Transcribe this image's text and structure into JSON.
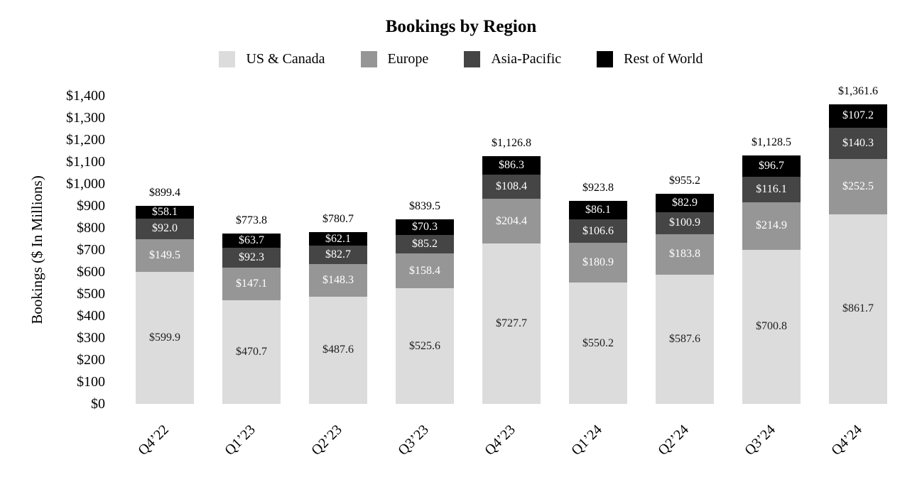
{
  "chart_data": {
    "type": "bar",
    "stacked": true,
    "title": "Bookings by Region",
    "categories": [
      "Q4’22",
      "Q1’23",
      "Q2’23",
      "Q3’23",
      "Q4’23",
      "Q1’24",
      "Q2’24",
      "Q3’24",
      "Q4’24"
    ],
    "series": [
      {
        "name": "US & Canada",
        "color": "#dcdcdc",
        "label_color": "#1f1f1f",
        "values": [
          599.9,
          470.7,
          487.6,
          525.6,
          727.7,
          550.2,
          587.6,
          700.8,
          861.7
        ],
        "labels": [
          "$599.9",
          "$470.7",
          "$487.6",
          "$525.6",
          "$727.7",
          "$550.2",
          "$587.6",
          "$700.8",
          "$861.7"
        ]
      },
      {
        "name": "Europe",
        "color": "#969696",
        "label_color": "#ffffff",
        "values": [
          149.5,
          147.1,
          148.3,
          158.4,
          204.4,
          180.9,
          183.8,
          214.9,
          252.5
        ],
        "labels": [
          "$149.5",
          "$147.1",
          "$148.3",
          "$158.4",
          "$204.4",
          "$180.9",
          "$183.8",
          "$214.9",
          "$252.5"
        ]
      },
      {
        "name": "Asia-Pacific",
        "color": "#454545",
        "label_color": "#ffffff",
        "values": [
          92.0,
          92.3,
          82.7,
          85.2,
          108.4,
          106.6,
          100.9,
          116.1,
          140.3
        ],
        "labels": [
          "$92.0",
          "$92.3",
          "$82.7",
          "$85.2",
          "$108.4",
          "$106.6",
          "$100.9",
          "$116.1",
          "$140.3"
        ]
      },
      {
        "name": "Rest of World",
        "color": "#000000",
        "label_color": "#ffffff",
        "values": [
          58.1,
          63.7,
          62.1,
          70.3,
          86.3,
          86.1,
          82.9,
          96.7,
          107.2
        ],
        "labels": [
          "$58.1",
          "$63.7",
          "$62.1",
          "$70.3",
          "$86.3",
          "$86.1",
          "$82.9",
          "$96.7",
          "$107.2"
        ]
      }
    ],
    "totals": {
      "values": [
        899.4,
        773.8,
        780.7,
        839.5,
        1126.8,
        923.8,
        955.2,
        1128.5,
        1361.6
      ],
      "labels": [
        "$899.4",
        "$773.8",
        "$780.7",
        "$839.5",
        "$1,126.8",
        "$923.8",
        "$955.2",
        "$1,128.5",
        "$1,361.6"
      ]
    },
    "y_axis": {
      "title": "Bookings ($ In Millions)",
      "min": 0,
      "max": 1400,
      "ticks": [
        {
          "value": 0,
          "label": "$0"
        },
        {
          "value": 100,
          "label": "$100"
        },
        {
          "value": 200,
          "label": "$200"
        },
        {
          "value": 300,
          "label": "$300"
        },
        {
          "value": 400,
          "label": "$400"
        },
        {
          "value": 500,
          "label": "$500"
        },
        {
          "value": 600,
          "label": "$600"
        },
        {
          "value": 700,
          "label": "$700"
        },
        {
          "value": 800,
          "label": "$800"
        },
        {
          "value": 900,
          "label": "$900"
        },
        {
          "value": 1000,
          "label": "$1,000"
        },
        {
          "value": 1100,
          "label": "$1,100"
        },
        {
          "value": 1200,
          "label": "$1,200"
        },
        {
          "value": 1300,
          "label": "$1,300"
        },
        {
          "value": 1400,
          "label": "$1,400"
        }
      ]
    },
    "grid": false,
    "legend_position": "top"
  }
}
